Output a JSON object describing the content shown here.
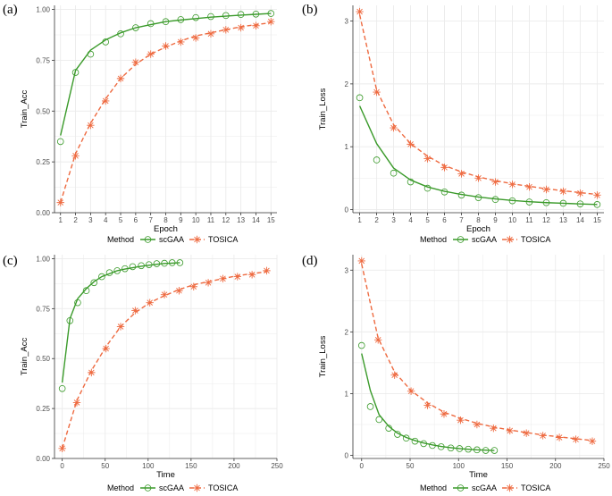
{
  "colors": {
    "scGAA": "#3a9a2a",
    "TOSICA": "#ee6a40",
    "grid": "#ebebeb",
    "axis": "#333333"
  },
  "chart_data": [
    {
      "type": "line",
      "panel_label": "(a)",
      "xlabel": "Epoch",
      "ylabel": "Train_Acc",
      "xlim": [
        0.6,
        15.4
      ],
      "ylim": [
        0,
        1.02
      ],
      "xticks": [
        1,
        2,
        3,
        4,
        5,
        6,
        7,
        8,
        9,
        10,
        11,
        12,
        13,
        14,
        15
      ],
      "xtick_labels": [
        "1",
        "2",
        "3",
        "4",
        "5",
        "6",
        "7",
        "8",
        "9",
        "10",
        "11",
        "12",
        "13",
        "14",
        "15"
      ],
      "yticks": [
        0,
        0.25,
        0.5,
        0.75,
        1
      ],
      "ytick_labels": [
        "0.00",
        "0.25",
        "0.50",
        "0.75",
        "1.00"
      ],
      "legend_title": "Method",
      "series": [
        {
          "name": "scGAA",
          "x": [
            1,
            2,
            3,
            4,
            5,
            6,
            7,
            8,
            9,
            10,
            11,
            12,
            13,
            14,
            15
          ],
          "points": [
            0.35,
            0.69,
            0.78,
            0.84,
            0.88,
            0.91,
            0.93,
            0.94,
            0.95,
            0.96,
            0.965,
            0.97,
            0.975,
            0.977,
            0.98
          ],
          "curve": [
            0.38,
            0.7,
            0.8,
            0.85,
            0.885,
            0.91,
            0.925,
            0.94,
            0.948,
            0.955,
            0.962,
            0.967,
            0.972,
            0.976,
            0.98
          ]
        },
        {
          "name": "TOSICA",
          "x": [
            1,
            2,
            3,
            4,
            5,
            6,
            7,
            8,
            9,
            10,
            11,
            12,
            13,
            14,
            15
          ],
          "points": [
            0.05,
            0.28,
            0.43,
            0.55,
            0.66,
            0.74,
            0.78,
            0.82,
            0.84,
            0.86,
            0.88,
            0.9,
            0.91,
            0.92,
            0.94
          ],
          "curve": [
            0.05,
            0.29,
            0.44,
            0.56,
            0.66,
            0.73,
            0.78,
            0.815,
            0.845,
            0.87,
            0.885,
            0.9,
            0.915,
            0.925,
            0.935
          ]
        }
      ]
    },
    {
      "type": "line",
      "panel_label": "(b)",
      "xlabel": "Epoch",
      "ylabel": "Train_Loss",
      "xlim": [
        0.6,
        15.4
      ],
      "ylim": [
        -0.05,
        3.25
      ],
      "xticks": [
        1,
        2,
        3,
        4,
        5,
        6,
        7,
        8,
        9,
        10,
        11,
        12,
        13,
        14,
        15
      ],
      "xtick_labels": [
        "1",
        "2",
        "3",
        "4",
        "5",
        "6",
        "7",
        "8",
        "9",
        "10",
        "11",
        "12",
        "13",
        "14",
        "15"
      ],
      "yticks": [
        0,
        1,
        2,
        3
      ],
      "ytick_labels": [
        "0",
        "1",
        "2",
        "3"
      ],
      "legend_title": "Method",
      "series": [
        {
          "name": "scGAA",
          "x": [
            1,
            2,
            3,
            4,
            5,
            6,
            7,
            8,
            9,
            10,
            11,
            12,
            13,
            14,
            15
          ],
          "points": [
            1.78,
            0.79,
            0.58,
            0.44,
            0.34,
            0.28,
            0.23,
            0.19,
            0.16,
            0.14,
            0.12,
            0.11,
            0.1,
            0.09,
            0.08
          ],
          "curve": [
            1.65,
            1.05,
            0.66,
            0.47,
            0.36,
            0.29,
            0.24,
            0.2,
            0.17,
            0.145,
            0.125,
            0.11,
            0.1,
            0.09,
            0.08
          ]
        },
        {
          "name": "TOSICA",
          "x": [
            1,
            2,
            3,
            4,
            5,
            6,
            7,
            8,
            9,
            10,
            11,
            12,
            13,
            14,
            15
          ],
          "points": [
            3.15,
            1.87,
            1.3,
            1.04,
            0.81,
            0.67,
            0.57,
            0.5,
            0.44,
            0.4,
            0.36,
            0.32,
            0.29,
            0.26,
            0.23
          ],
          "curve": [
            3.1,
            1.9,
            1.35,
            1.05,
            0.85,
            0.7,
            0.6,
            0.52,
            0.46,
            0.41,
            0.37,
            0.33,
            0.3,
            0.27,
            0.24
          ]
        }
      ]
    },
    {
      "type": "line",
      "panel_label": "(c)",
      "xlabel": "Time",
      "ylabel": "Train_Acc",
      "xlim": [
        -9,
        250
      ],
      "ylim": [
        0,
        1.02
      ],
      "xticks": [
        0,
        50,
        100,
        150,
        200,
        250
      ],
      "xtick_labels": [
        "0",
        "50",
        "100",
        "150",
        "200",
        "250"
      ],
      "yticks": [
        0,
        0.25,
        0.5,
        0.75,
        1
      ],
      "ytick_labels": [
        "0.00",
        "0.25",
        "0.50",
        "0.75",
        "1.00"
      ],
      "legend_title": "Method",
      "series": [
        {
          "name": "scGAA",
          "x": [
            0,
            9,
            18,
            28,
            37,
            46,
            55,
            64,
            73,
            82,
            92,
            101,
            110,
            119,
            128,
            137
          ],
          "points": [
            0.35,
            0.69,
            0.78,
            0.84,
            0.88,
            0.91,
            0.93,
            0.94,
            0.95,
            0.96,
            0.965,
            0.97,
            0.975,
            0.977,
            0.98,
            0.98
          ],
          "curve": [
            0.38,
            0.7,
            0.8,
            0.85,
            0.885,
            0.91,
            0.925,
            0.94,
            0.948,
            0.955,
            0.962,
            0.967,
            0.972,
            0.976,
            0.978,
            0.98
          ]
        },
        {
          "name": "TOSICA",
          "x": [
            0,
            17,
            34,
            51,
            68,
            85,
            102,
            119,
            136,
            153,
            170,
            187,
            204,
            221,
            238
          ],
          "points": [
            0.05,
            0.28,
            0.43,
            0.55,
            0.66,
            0.74,
            0.78,
            0.82,
            0.84,
            0.86,
            0.88,
            0.9,
            0.91,
            0.92,
            0.94
          ],
          "curve": [
            0.05,
            0.29,
            0.44,
            0.56,
            0.66,
            0.73,
            0.78,
            0.815,
            0.845,
            0.87,
            0.885,
            0.9,
            0.915,
            0.925,
            0.935
          ]
        }
      ]
    },
    {
      "type": "line",
      "panel_label": "(d)",
      "xlabel": "Time",
      "ylabel": "Train_Loss",
      "xlim": [
        -9,
        250
      ],
      "ylim": [
        -0.05,
        3.25
      ],
      "xticks": [
        0,
        50,
        100,
        150,
        200,
        250
      ],
      "xtick_labels": [
        "0",
        "50",
        "100",
        "150",
        "200",
        "250"
      ],
      "yticks": [
        0,
        1,
        2,
        3
      ],
      "ytick_labels": [
        "0",
        "1",
        "2",
        "3"
      ],
      "legend_title": "Method",
      "series": [
        {
          "name": "scGAA",
          "x": [
            0,
            9,
            18,
            28,
            37,
            46,
            55,
            64,
            73,
            82,
            92,
            101,
            110,
            119,
            128,
            137
          ],
          "points": [
            1.78,
            0.79,
            0.58,
            0.44,
            0.34,
            0.28,
            0.23,
            0.19,
            0.16,
            0.14,
            0.12,
            0.11,
            0.1,
            0.09,
            0.08,
            0.08
          ],
          "curve": [
            1.65,
            1.05,
            0.66,
            0.47,
            0.36,
            0.29,
            0.24,
            0.2,
            0.17,
            0.145,
            0.125,
            0.11,
            0.1,
            0.09,
            0.085,
            0.08
          ]
        },
        {
          "name": "TOSICA",
          "x": [
            0,
            17,
            34,
            51,
            68,
            85,
            102,
            119,
            136,
            153,
            170,
            187,
            204,
            221,
            238
          ],
          "points": [
            3.15,
            1.87,
            1.3,
            1.04,
            0.81,
            0.67,
            0.57,
            0.5,
            0.44,
            0.4,
            0.36,
            0.32,
            0.29,
            0.26,
            0.23
          ],
          "curve": [
            3.1,
            1.9,
            1.35,
            1.05,
            0.85,
            0.7,
            0.6,
            0.52,
            0.46,
            0.41,
            0.37,
            0.33,
            0.3,
            0.27,
            0.24
          ]
        }
      ]
    }
  ]
}
